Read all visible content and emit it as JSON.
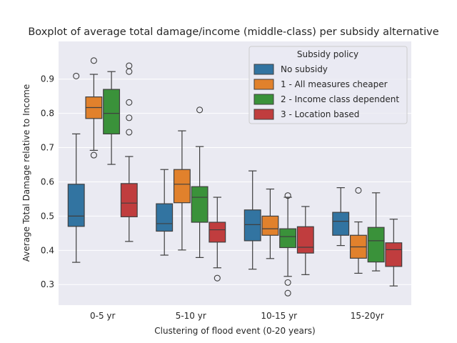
{
  "chart_data": {
    "type": "boxplot",
    "title": "Boxplot of average total damage/income (middle-class) per subsidy alternative",
    "xlabel": "Clustering of flood event (0-20 years)",
    "ylabel": "Average Total Damage relative to Income",
    "ylim": [
      0.24,
      1.01
    ],
    "yticks": [
      0.3,
      0.4,
      0.5,
      0.6,
      0.7,
      0.8,
      0.9
    ],
    "categories": [
      "0-5 yr",
      "5-10 yr",
      "10-15 yr",
      "15-20yr"
    ],
    "grid": true,
    "legend": {
      "title": "Subsidy policy",
      "placement": "top-right"
    },
    "series": [
      {
        "name": "No subsidy",
        "color": "#3274a1",
        "boxes": [
          {
            "whisker_low": 0.365,
            "q1": 0.47,
            "median": 0.5,
            "q3": 0.593,
            "whisker_high": 0.74,
            "outliers": [
              0.909
            ]
          },
          {
            "whisker_low": 0.386,
            "q1": 0.456,
            "median": 0.478,
            "q3": 0.536,
            "whisker_high": 0.636,
            "outliers": []
          },
          {
            "whisker_low": 0.345,
            "q1": 0.428,
            "median": 0.475,
            "q3": 0.518,
            "whisker_high": 0.632,
            "outliers": []
          },
          {
            "whisker_low": 0.414,
            "q1": 0.444,
            "median": 0.485,
            "q3": 0.511,
            "whisker_high": 0.583,
            "outliers": []
          }
        ]
      },
      {
        "name": "1 - All measures cheaper",
        "color": "#e1812c",
        "boxes": [
          {
            "whisker_low": 0.692,
            "q1": 0.785,
            "median": 0.817,
            "q3": 0.848,
            "whisker_high": 0.914,
            "outliers": [
              0.678,
              0.954
            ]
          },
          {
            "whisker_low": 0.401,
            "q1": 0.539,
            "median": 0.593,
            "q3": 0.636,
            "whisker_high": 0.749,
            "outliers": []
          },
          {
            "whisker_low": 0.376,
            "q1": 0.444,
            "median": 0.463,
            "q3": 0.5,
            "whisker_high": 0.579,
            "outliers": []
          },
          {
            "whisker_low": 0.333,
            "q1": 0.377,
            "median": 0.41,
            "q3": 0.444,
            "whisker_high": 0.483,
            "outliers": [
              0.575
            ]
          }
        ]
      },
      {
        "name": "2 - Income class dependent",
        "color": "#3a923a",
        "boxes": [
          {
            "whisker_low": 0.651,
            "q1": 0.74,
            "median": 0.8,
            "q3": 0.87,
            "whisker_high": 0.922,
            "outliers": []
          },
          {
            "whisker_low": 0.379,
            "q1": 0.482,
            "median": 0.555,
            "q3": 0.586,
            "whisker_high": 0.703,
            "outliers": [
              0.81
            ]
          },
          {
            "whisker_low": 0.324,
            "q1": 0.408,
            "median": 0.44,
            "q3": 0.463,
            "whisker_high": 0.555,
            "outliers": [
              0.56,
              0.306,
              0.275
            ]
          },
          {
            "whisker_low": 0.34,
            "q1": 0.366,
            "median": 0.428,
            "q3": 0.467,
            "whisker_high": 0.568,
            "outliers": []
          }
        ]
      },
      {
        "name": "3 - Location based",
        "color": "#c03d3e",
        "boxes": [
          {
            "whisker_low": 0.426,
            "q1": 0.498,
            "median": 0.538,
            "q3": 0.595,
            "whisker_high": 0.674,
            "outliers": [
              0.939,
              0.922,
              0.832,
              0.787,
              0.745
            ]
          },
          {
            "whisker_low": 0.349,
            "q1": 0.424,
            "median": 0.46,
            "q3": 0.482,
            "whisker_high": 0.555,
            "outliers": [
              0.319
            ]
          },
          {
            "whisker_low": 0.329,
            "q1": 0.392,
            "median": 0.409,
            "q3": 0.469,
            "whisker_high": 0.528,
            "outliers": []
          },
          {
            "whisker_low": 0.296,
            "q1": 0.353,
            "median": 0.402,
            "q3": 0.422,
            "whisker_high": 0.491,
            "outliers": []
          }
        ]
      }
    ]
  }
}
